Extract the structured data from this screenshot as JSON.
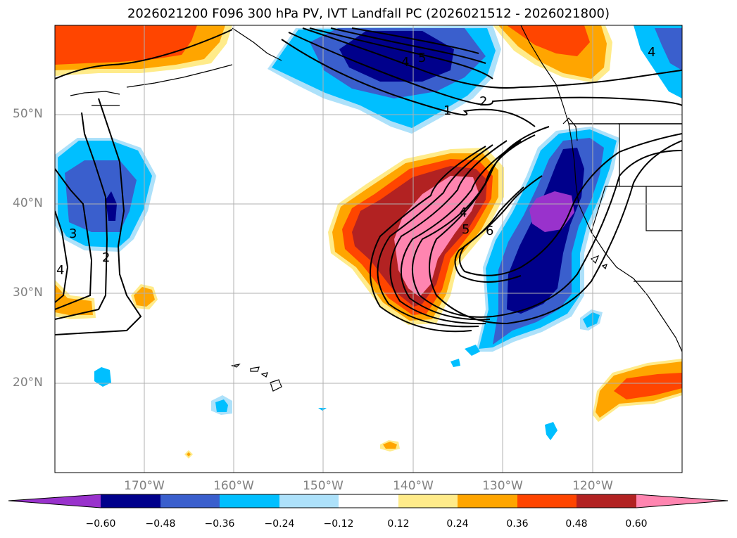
{
  "title": "2026021200 F096 300 hPa PV, IVT Landfall PC (2026021512 - 2026021800)",
  "latitude_labels": [
    "50°N",
    "40°N",
    "30°N",
    "20°N"
  ],
  "longitude_labels": [
    "170°W",
    "160°W",
    "150°W",
    "140°W",
    "130°W",
    "120°W"
  ],
  "colorbar": {
    "ticks": [
      "−0.60",
      "−0.48",
      "−0.36",
      "−0.24",
      "−0.12",
      "0.12",
      "0.24",
      "0.36",
      "0.48",
      "0.60"
    ],
    "colors": [
      "#9932CC",
      "#00008B",
      "#3A5FCD",
      "#00BFFF",
      "#ADE1FA",
      "#FFFFFF",
      "#FFEB8A",
      "#FFA500",
      "#FF4500",
      "#B22222",
      "#FF85B0"
    ]
  },
  "contour_labels": {
    "c1": "1",
    "c2": "2",
    "c3": "3",
    "c4": "4",
    "c5": "5",
    "c6": "6",
    "w2": "2",
    "w3": "3",
    "w4": "4",
    "n4": "4",
    "n5": "5"
  }
}
